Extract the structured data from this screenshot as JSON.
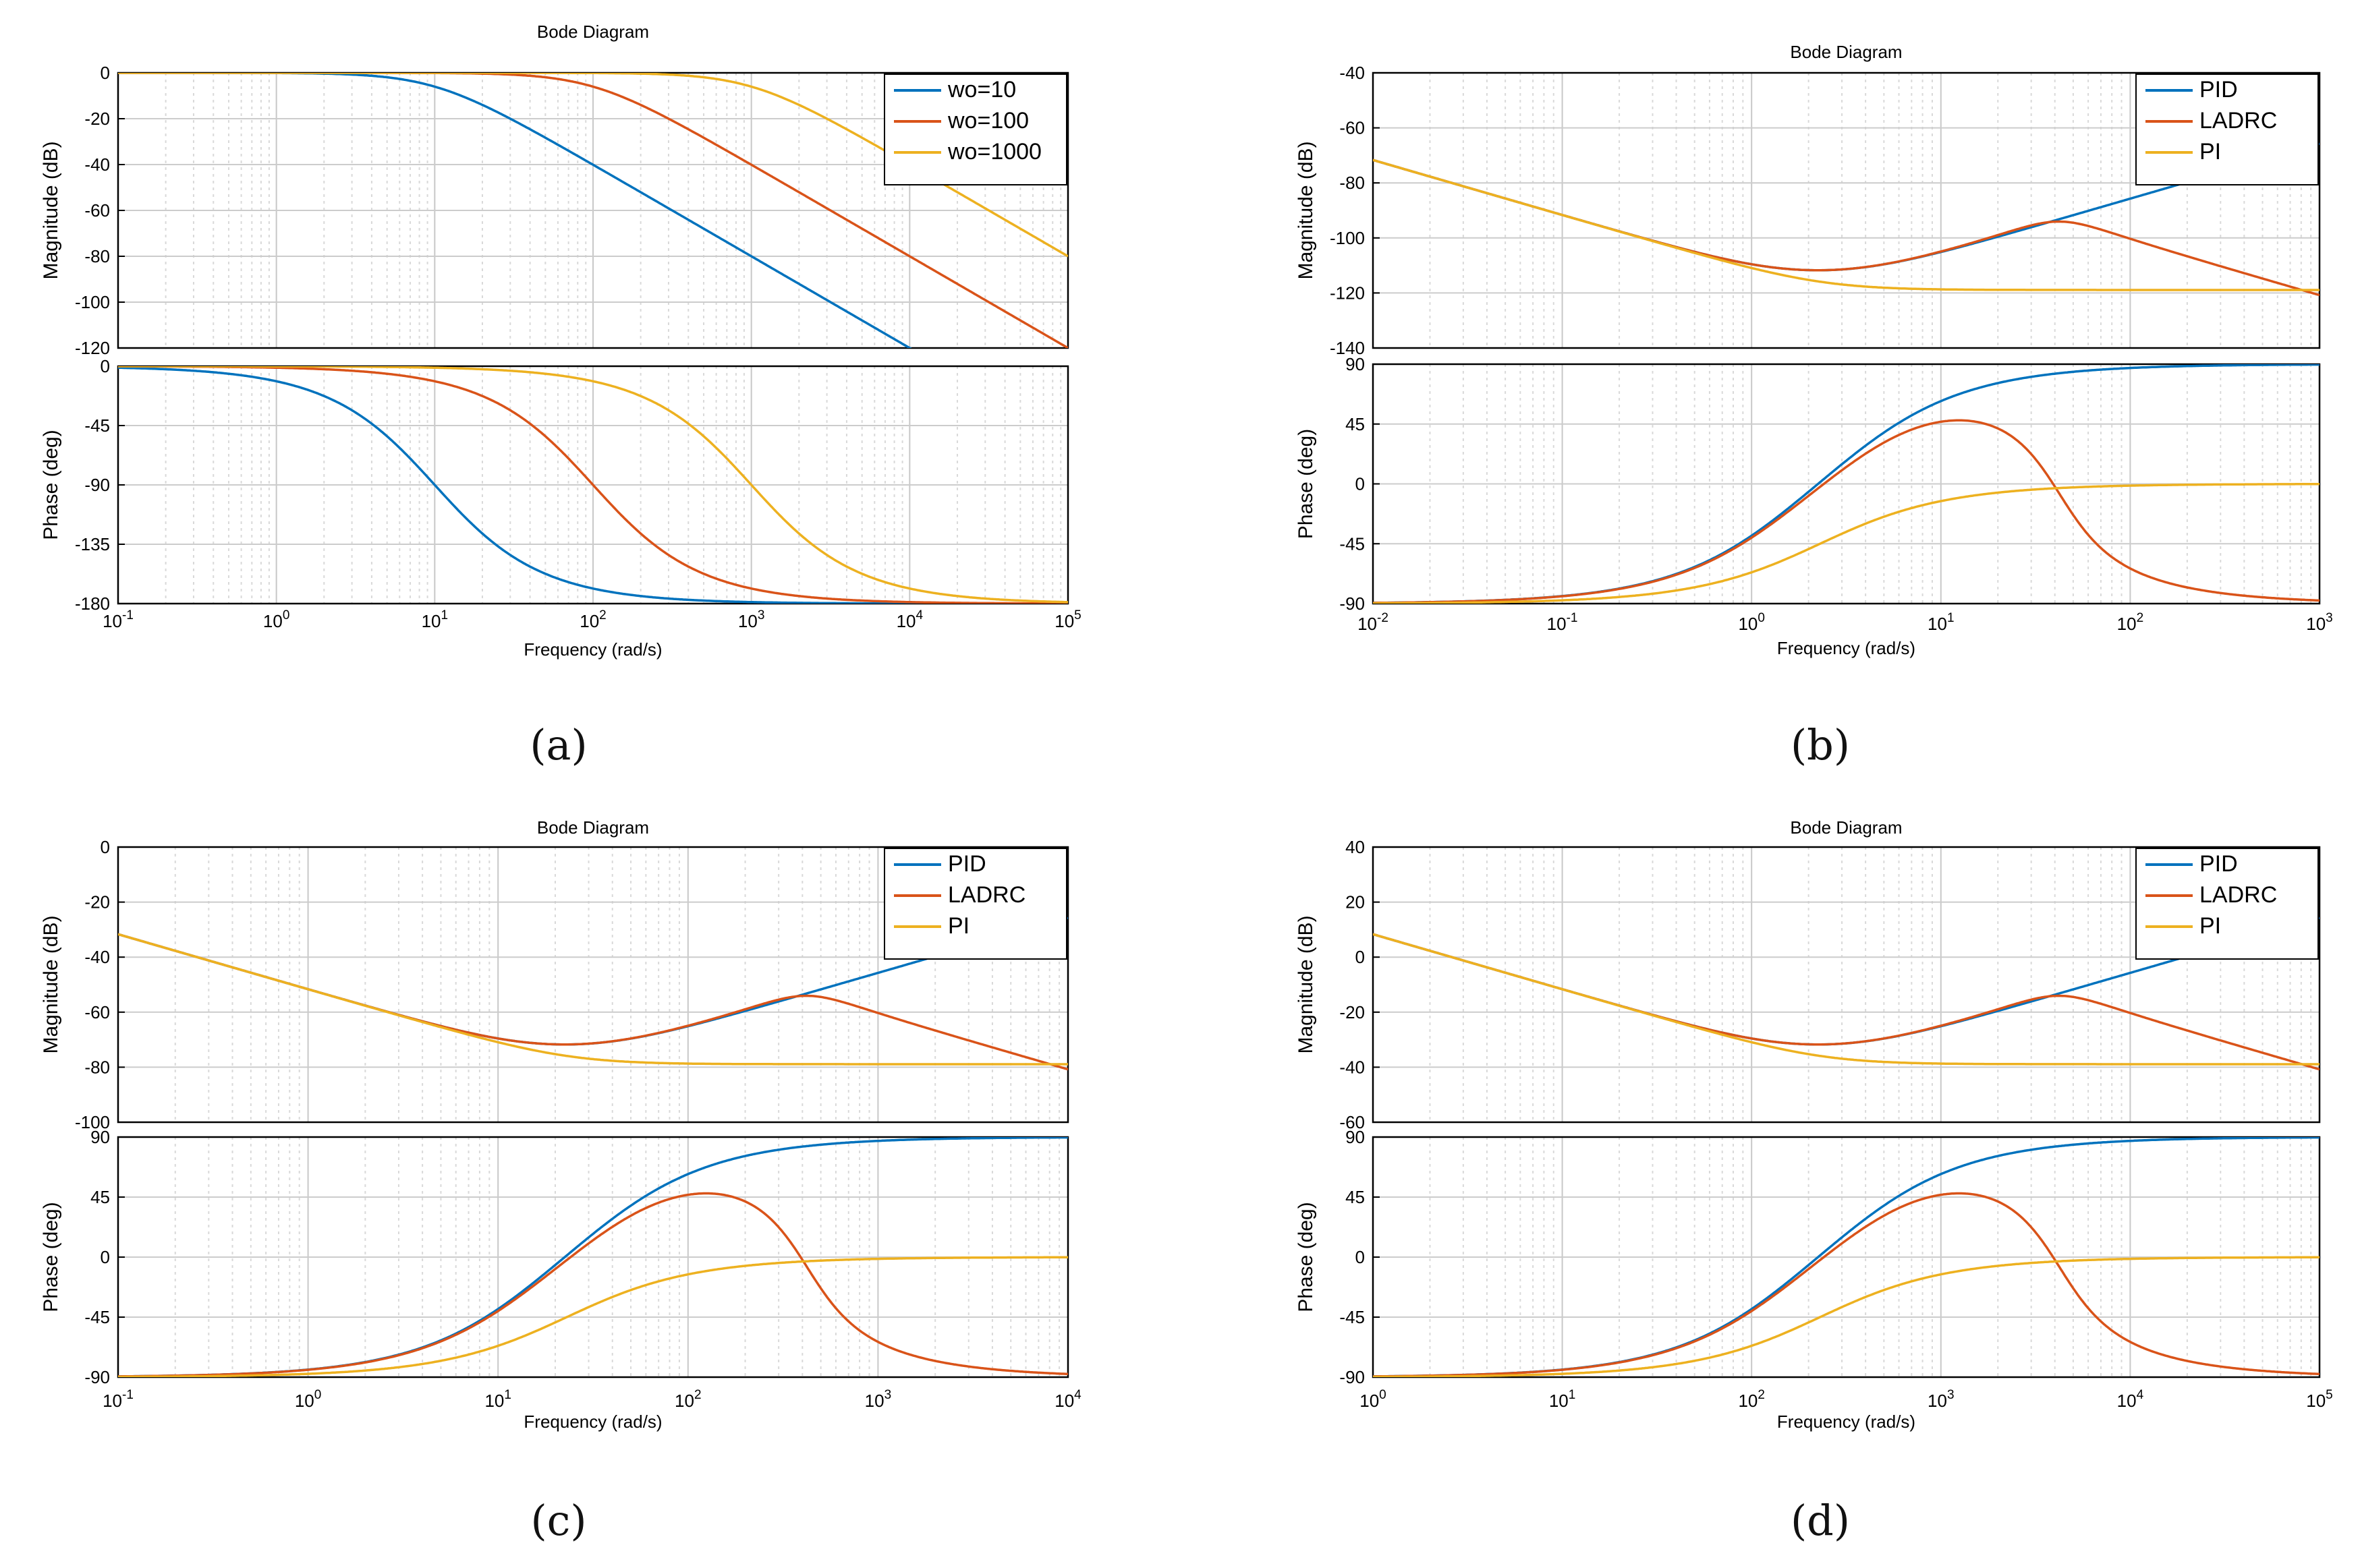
{
  "colors": {
    "blue": "#0072BD",
    "orange": "#D95319",
    "yellow": "#EDB120",
    "grid": "#cccccc",
    "axis": "#000000"
  },
  "chart_data": [
    {
      "id": "a",
      "type": "line",
      "panel_label": "(a)",
      "title": "Bode Diagram",
      "xlabel": "Frequency  (rad/s)",
      "xscale": "log",
      "xlim_exp": [
        -1,
        5
      ],
      "xtick_exps": [
        -1,
        0,
        1,
        2,
        3,
        4,
        5
      ],
      "mag": {
        "ylabel": "Magnitude (dB)",
        "ylim": [
          -120,
          0
        ],
        "yticks": [
          0,
          -20,
          -40,
          -60,
          -80,
          -100,
          -120
        ]
      },
      "phase": {
        "ylabel": "Phase (deg)",
        "ylim": [
          -180,
          0
        ],
        "yticks": [
          0,
          -45,
          -90,
          -135,
          -180
        ]
      },
      "legend_loc": "top-right",
      "model": "lowpass2",
      "series": [
        {
          "name": "wo=10",
          "wo": 10,
          "color": "#0072BD"
        },
        {
          "name": "wo=100",
          "wo": 100,
          "color": "#D95319"
        },
        {
          "name": "wo=1000",
          "wo": 1000,
          "color": "#EDB120"
        }
      ]
    },
    {
      "id": "b",
      "type": "line",
      "panel_label": "(b)",
      "title": "Bode Diagram",
      "xlabel": "Frequency  (rad/s)",
      "xscale": "log",
      "xlim_exp": [
        -2,
        3
      ],
      "xtick_exps": [
        -2,
        -1,
        0,
        1,
        2,
        3
      ],
      "mag": {
        "ylabel": "Magnitude (dB)",
        "ylim": [
          -140,
          -40
        ],
        "yticks": [
          -40,
          -60,
          -80,
          -100,
          -120,
          -140
        ]
      },
      "phase": {
        "ylabel": "Phase (deg)",
        "ylim": [
          -90,
          90
        ],
        "yticks": [
          90,
          45,
          0,
          -45,
          -90
        ]
      },
      "legend_loc": "top-right",
      "model": "controllers",
      "wo": 1,
      "dc_db": -106,
      "series": [
        {
          "name": "PID",
          "kind": "pid",
          "color": "#0072BD"
        },
        {
          "name": "LADRC",
          "kind": "ladrc",
          "color": "#D95319"
        },
        {
          "name": "PI",
          "kind": "pi",
          "color": "#EDB120"
        }
      ]
    },
    {
      "id": "c",
      "type": "line",
      "panel_label": "(c)",
      "title": "Bode Diagram",
      "xlabel": "Frequency  (rad/s)",
      "xscale": "log",
      "xlim_exp": [
        -1,
        4
      ],
      "xtick_exps": [
        -1,
        0,
        1,
        2,
        3,
        4
      ],
      "mag": {
        "ylabel": "Magnitude (dB)",
        "ylim": [
          -100,
          0
        ],
        "yticks": [
          0,
          -20,
          -40,
          -60,
          -80,
          -100
        ]
      },
      "phase": {
        "ylabel": "Phase (deg)",
        "ylim": [
          -90,
          90
        ],
        "yticks": [
          90,
          45,
          0,
          -45,
          -90
        ]
      },
      "legend_loc": "top-right",
      "model": "controllers",
      "wo": 10,
      "dc_db": -66,
      "series": [
        {
          "name": "PID",
          "kind": "pid",
          "color": "#0072BD"
        },
        {
          "name": "LADRC",
          "kind": "ladrc",
          "color": "#D95319"
        },
        {
          "name": "PI",
          "kind": "pi",
          "color": "#EDB120"
        }
      ]
    },
    {
      "id": "d",
      "type": "line",
      "panel_label": "(d)",
      "title": "Bode Diagram",
      "xlabel": "Frequency  (rad/s)",
      "xscale": "log",
      "xlim_exp": [
        0,
        5
      ],
      "xtick_exps": [
        0,
        1,
        2,
        3,
        4,
        5
      ],
      "mag": {
        "ylabel": "Magnitude (dB)",
        "ylim": [
          -60,
          40
        ],
        "yticks": [
          40,
          20,
          0,
          -20,
          -40,
          -60
        ]
      },
      "phase": {
        "ylabel": "Phase (deg)",
        "ylim": [
          -90,
          90
        ],
        "yticks": [
          90,
          45,
          0,
          -45,
          -90
        ]
      },
      "legend_loc": "top-right",
      "model": "controllers",
      "wo": 100,
      "dc_db": -26,
      "series": [
        {
          "name": "PID",
          "kind": "pid",
          "color": "#0072BD"
        },
        {
          "name": "LADRC",
          "kind": "ladrc",
          "color": "#D95319"
        },
        {
          "name": "PI",
          "kind": "pi",
          "color": "#EDB120"
        }
      ]
    }
  ]
}
